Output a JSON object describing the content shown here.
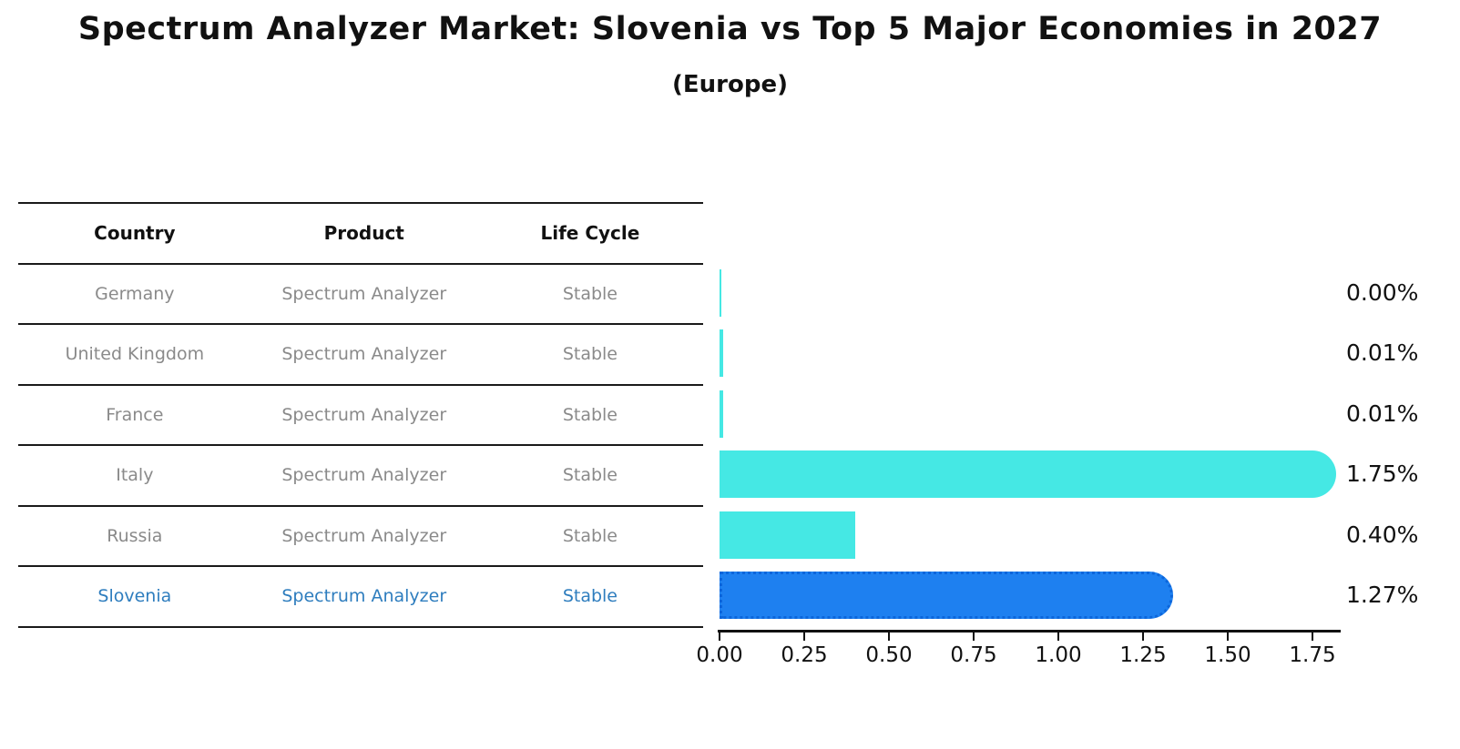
{
  "title": "Spectrum Analyzer Market: Slovenia vs Top 5 Major Economies in 2027",
  "subtitle": "(Europe)",
  "table": {
    "headers": [
      "Country",
      "Product",
      "Life Cycle"
    ],
    "rows": [
      {
        "country": "Germany",
        "product": "Spectrum Analyzer",
        "life_cycle": "Stable",
        "highlight": false
      },
      {
        "country": "United Kingdom",
        "product": "Spectrum Analyzer",
        "life_cycle": "Stable",
        "highlight": false
      },
      {
        "country": "France",
        "product": "Spectrum Analyzer",
        "life_cycle": "Stable",
        "highlight": false
      },
      {
        "country": "Italy",
        "product": "Spectrum Analyzer",
        "life_cycle": "Stable",
        "highlight": false
      },
      {
        "country": "Russia",
        "product": "Spectrum Analyzer",
        "life_cycle": "Stable",
        "highlight": false
      },
      {
        "country": "Slovenia",
        "product": "Spectrum Analyzer",
        "life_cycle": "Stable",
        "highlight": true
      }
    ]
  },
  "chart_data": {
    "type": "bar",
    "orientation": "horizontal",
    "title": "Spectrum Analyzer Market: Slovenia vs Top 5 Major Economies in 2027",
    "subtitle": "(Europe)",
    "categories": [
      "Germany",
      "United Kingdom",
      "France",
      "Italy",
      "Russia",
      "Slovenia"
    ],
    "values": [
      0.0,
      0.01,
      0.01,
      1.75,
      0.4,
      1.27
    ],
    "value_labels": [
      "0.00%",
      "0.01%",
      "0.01%",
      "1.75%",
      "0.40%",
      "1.27%"
    ],
    "rounded_end": [
      false,
      false,
      false,
      true,
      false,
      true
    ],
    "highlight_category": "Slovenia",
    "xlabel": "",
    "ylabel": "",
    "xlim": [
      0,
      1.83
    ],
    "xticks": [
      0.0,
      0.25,
      0.5,
      0.75,
      1.0,
      1.25,
      1.5,
      1.75
    ],
    "xtick_labels": [
      "0.00",
      "0.25",
      "0.50",
      "0.75",
      "1.00",
      "1.25",
      "1.50",
      "1.75"
    ],
    "grid": false,
    "legend": false,
    "colors": {
      "bar_default": "#45e8e4",
      "bar_highlight": "#1e80f0",
      "bar_highlight_border": "#0c66db",
      "highlight_text": "#2e7dbe",
      "row_text": "#8a8a8a",
      "header_text": "#111111",
      "axis": "#111111"
    }
  }
}
